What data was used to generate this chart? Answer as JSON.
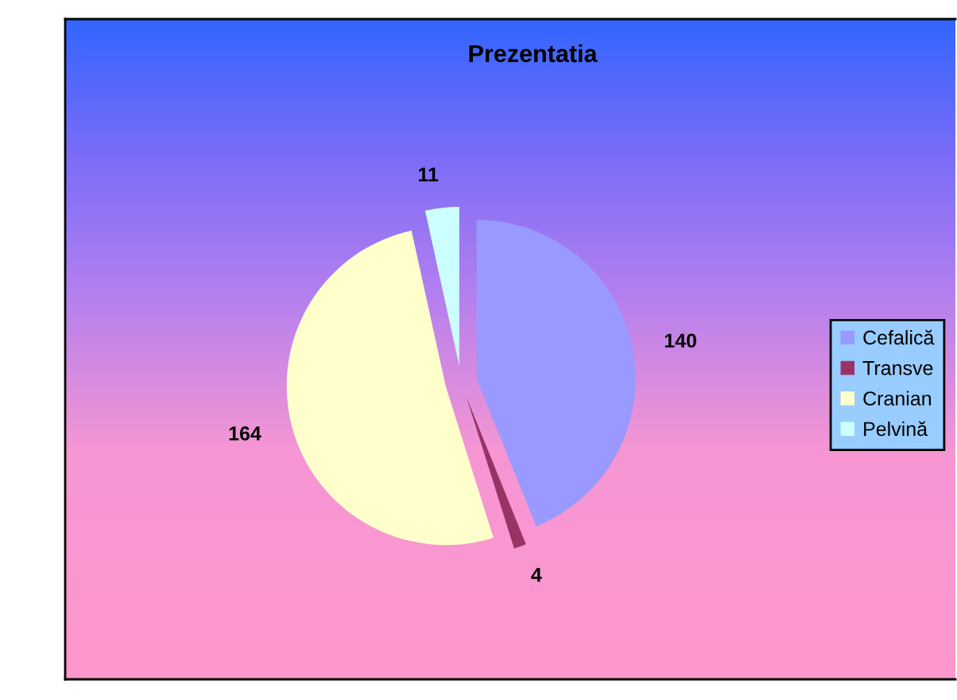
{
  "chart_data": {
    "type": "pie",
    "title": "Prezentatia",
    "categories": [
      "Cefalică",
      "Transve",
      "Cranian",
      "Pelvină"
    ],
    "values": [
      140,
      4,
      164,
      11
    ],
    "colors": [
      "#9999ff",
      "#993366",
      "#ffffcc",
      "#ccffff"
    ],
    "data_labels": true,
    "legend": "right"
  }
}
